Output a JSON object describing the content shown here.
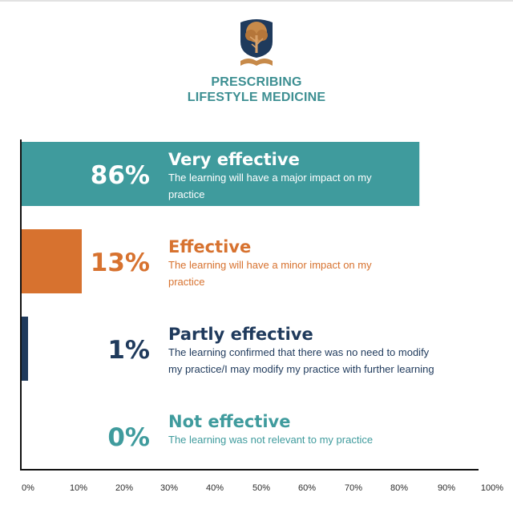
{
  "header": {
    "title_line1": "PRESCRIBING",
    "title_line2": "LIFESTYLE MEDICINE",
    "logo_icon": "tree-book-icon"
  },
  "colors": {
    "teal": "#3f9b9d",
    "orange": "#d7722f",
    "navy": "#1f3a5c",
    "title": "#3d8f92"
  },
  "chart_data": {
    "type": "bar",
    "orientation": "horizontal",
    "xlim": [
      0,
      100
    ],
    "ticks": [
      "0%",
      "10%",
      "20%",
      "30%",
      "40%",
      "50%",
      "60%",
      "70%",
      "80%",
      "90%",
      "100%"
    ],
    "grid": false,
    "bars": [
      {
        "value": 86,
        "pct_label": "86%",
        "heading": "Very effective",
        "desc_lines": [
          "The learning will have a major impact on my",
          "practice"
        ],
        "color": "#3f9b9d",
        "label_color": "#ffffff",
        "text_color": "#ffffff"
      },
      {
        "value": 13,
        "pct_label": "13%",
        "heading": "Effective",
        "desc_lines": [
          "The learning will have a minor impact on my",
          "practice"
        ],
        "color": "#d7722f",
        "label_color": "#d7722f",
        "text_color": "#d7722f"
      },
      {
        "value": 1,
        "pct_label": "1%",
        "heading": "Partly effective",
        "desc_lines": [
          "The learning confirmed that there was no need to modify",
          "my practice/I may modify my practice with further learning"
        ],
        "color": "#1f3a5c",
        "label_color": "#1f3a5c",
        "text_color": "#1f3a5c"
      },
      {
        "value": 0,
        "pct_label": "0%",
        "heading": "Not effective",
        "desc_lines": [
          "The learning was not relevant to my practice"
        ],
        "color": "#3f9b9d",
        "label_color": "#3f9b9d",
        "text_color": "#3f9b9d"
      }
    ]
  }
}
